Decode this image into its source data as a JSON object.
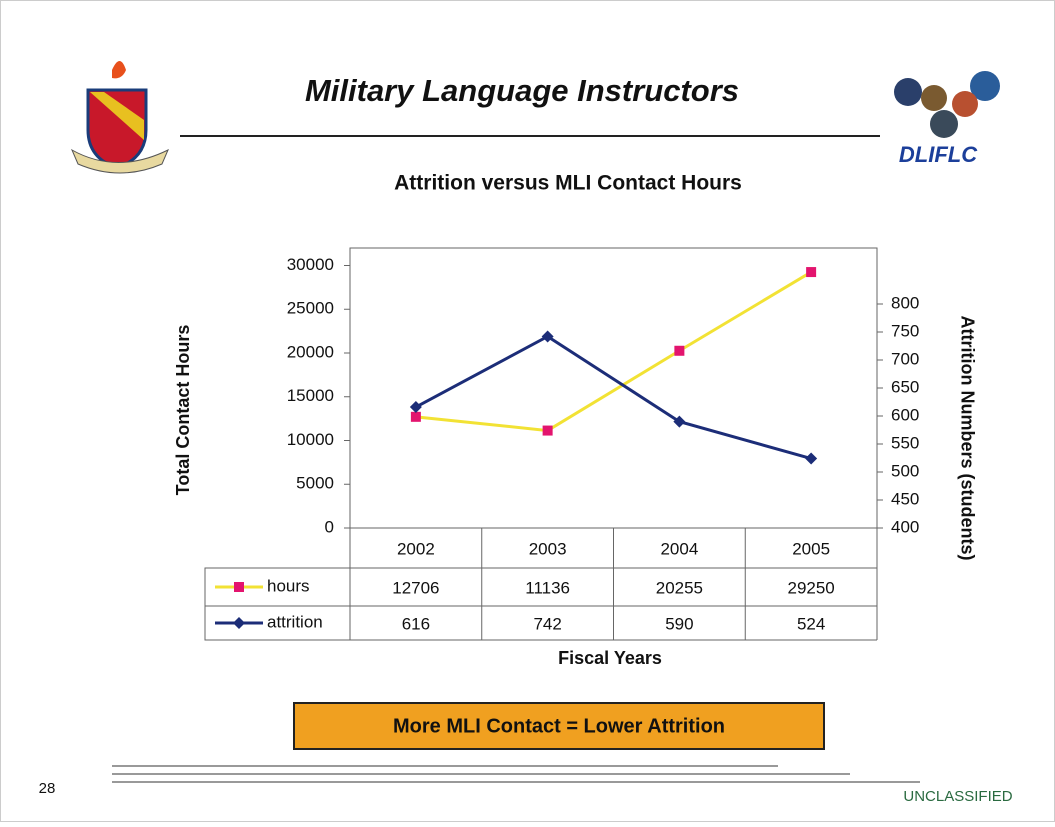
{
  "slide_title": "Military Language Instructors",
  "logo_text": "DLIFLC",
  "callout": "More MLI Contact  =  Lower Attrition",
  "page_number": "28",
  "classification": "UNCLASSIFIED",
  "chart_data": {
    "type": "line",
    "title": "Attrition versus MLI Contact Hours",
    "x_label": "Fiscal Years",
    "y_label": "Total Contact Hours",
    "y2_label": "Attrition Numbers (students)",
    "categories": [
      "2002",
      "2003",
      "2004",
      "2005"
    ],
    "series": [
      {
        "name": "hours",
        "color": "#f2e234",
        "marker_color": "#e3146e",
        "marker": "square",
        "values": [
          12706,
          11136,
          20255,
          29250
        ]
      },
      {
        "name": "attrition",
        "color": "#1c2d78",
        "marker_color": "#1c2d78",
        "marker": "diamond",
        "axis": "y2",
        "values": [
          616,
          742,
          590,
          524
        ]
      }
    ],
    "ylim": [
      0,
      32000
    ],
    "yticks": [
      0,
      5000,
      10000,
      15000,
      20000,
      25000,
      30000
    ],
    "y2lim": [
      400,
      900
    ],
    "y2ticks": [
      400,
      450,
      500,
      550,
      600,
      650,
      700,
      750,
      800
    ],
    "grid": false,
    "data_table": true
  }
}
